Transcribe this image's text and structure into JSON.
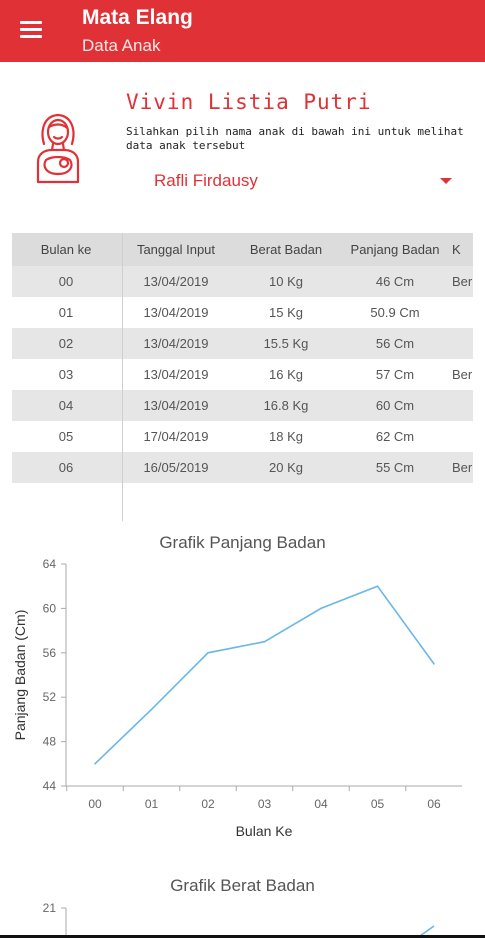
{
  "appbar": {
    "title": "Mata Elang",
    "subtitle": "Data Anak",
    "icon": "menu-icon",
    "color": "#e03236"
  },
  "profile": {
    "name": "Vivin Listia Putri",
    "instruction": "Silahkan pilih nama anak di bawah ini untuk melihat data anak tersebut",
    "avatar_icon": "mother-with-baby-icon",
    "selected_child": "Rafli Firdausy"
  },
  "table": {
    "headers": [
      "Bulan ke",
      "Tanggal Input",
      "Berat Badan",
      "Panjang Badan",
      "K"
    ],
    "rows": [
      [
        "00",
        "13/04/2019",
        "10 Kg",
        "46 Cm",
        "Ber"
      ],
      [
        "01",
        "13/04/2019",
        "15 Kg",
        "50.9 Cm",
        ""
      ],
      [
        "02",
        "13/04/2019",
        "15.5 Kg",
        "56 Cm",
        ""
      ],
      [
        "03",
        "13/04/2019",
        "16 Kg",
        "57 Cm",
        "Ber"
      ],
      [
        "04",
        "13/04/2019",
        "16.8 Kg",
        "60 Cm",
        ""
      ],
      [
        "05",
        "17/04/2019",
        "18 Kg",
        "62 Cm",
        ""
      ],
      [
        "06",
        "16/05/2019",
        "20 Kg",
        "55 Cm",
        "Ber"
      ]
    ]
  },
  "chart_data": [
    {
      "type": "line",
      "title": "Grafik Panjang Badan",
      "xlabel": "Bulan Ke",
      "ylabel": "Panjang Badan (Cm)",
      "categories": [
        "00",
        "01",
        "02",
        "03",
        "04",
        "05",
        "06"
      ],
      "values": [
        46,
        50.9,
        56,
        57,
        60,
        62,
        55
      ],
      "ylim": [
        44,
        64
      ],
      "yticks": [
        "44",
        "48",
        "52",
        "56",
        "60",
        "64"
      ],
      "color": "#6ab7e8",
      "grid": false
    },
    {
      "type": "line",
      "title": "Grafik Berat Badan",
      "yticks": [
        "21"
      ],
      "color": "#6ab7e8"
    }
  ]
}
